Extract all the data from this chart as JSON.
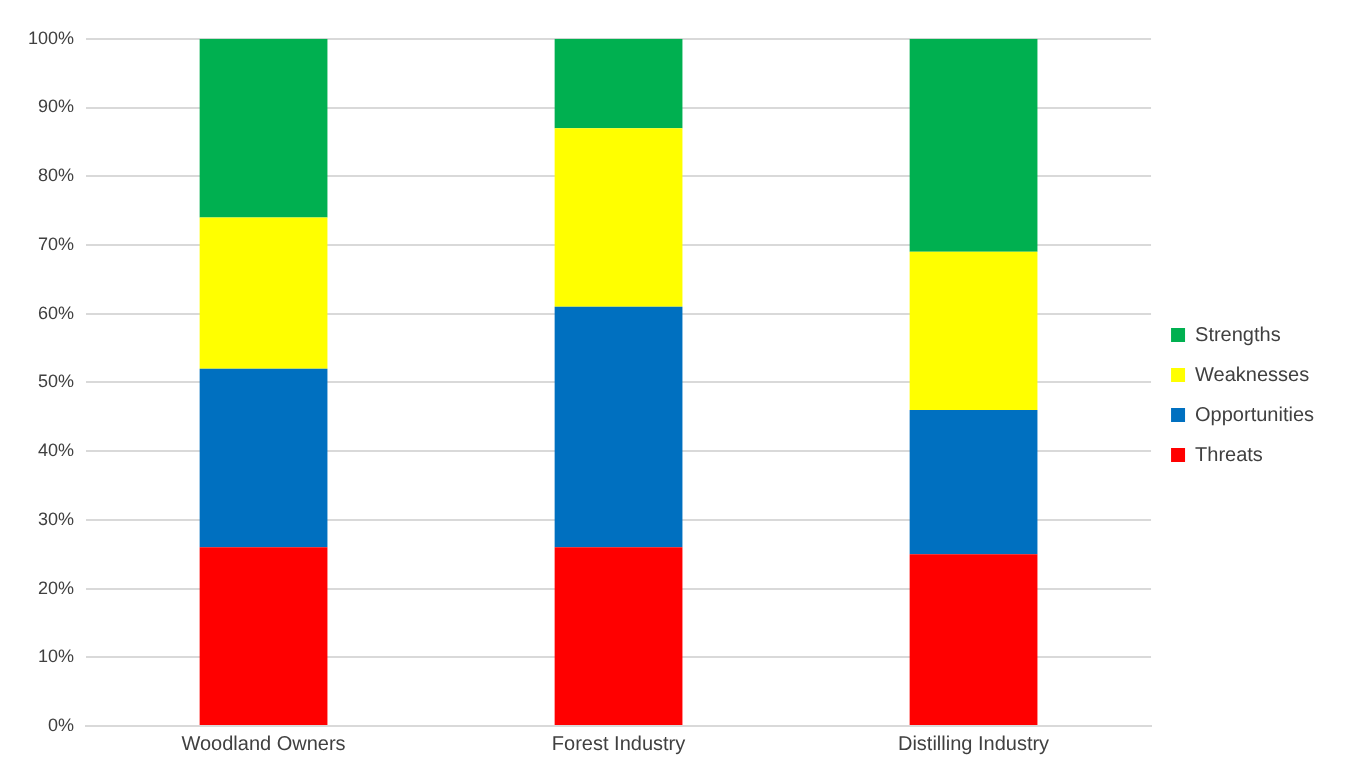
{
  "chart_data": {
    "type": "bar",
    "stacked": true,
    "categories": [
      "Woodland Owners",
      "Forest Industry",
      "Distilling Industry"
    ],
    "series": [
      {
        "name": "Threats",
        "color": "#ff0000",
        "values": [
          26,
          26,
          25
        ]
      },
      {
        "name": "Opportunities",
        "color": "#0070c0",
        "values": [
          26,
          35,
          21
        ]
      },
      {
        "name": "Weaknesses",
        "color": "#ffff00",
        "values": [
          22,
          26,
          23
        ]
      },
      {
        "name": "Strengths",
        "color": "#00b050",
        "values": [
          26,
          13,
          31
        ]
      }
    ],
    "ylim": [
      0,
      100
    ],
    "yticks": [
      {
        "value": 0,
        "label": "0%"
      },
      {
        "value": 10,
        "label": "10%"
      },
      {
        "value": 20,
        "label": "20%"
      },
      {
        "value": 30,
        "label": "30%"
      },
      {
        "value": 40,
        "label": "40%"
      },
      {
        "value": 50,
        "label": "50%"
      },
      {
        "value": 60,
        "label": "60%"
      },
      {
        "value": 70,
        "label": "70%"
      },
      {
        "value": 80,
        "label": "80%"
      },
      {
        "value": 90,
        "label": "90%"
      },
      {
        "value": 100,
        "label": "100%"
      }
    ],
    "grid": "y",
    "legend": "right"
  }
}
